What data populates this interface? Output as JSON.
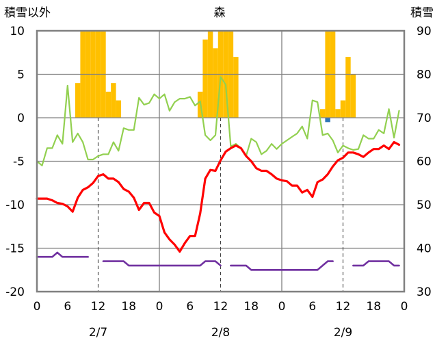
{
  "chart_data": {
    "type": "combo",
    "title": "森",
    "left_axis_title": "積雪以外",
    "right_axis_title": "積雪",
    "left_axis": {
      "min": -20,
      "max": 10,
      "ticks": [
        10,
        5,
        0,
        -5,
        -10,
        -15,
        -20
      ]
    },
    "right_axis": {
      "min": 30,
      "max": 90,
      "ticks": [
        90,
        80,
        70,
        60,
        50,
        40,
        30
      ]
    },
    "x_hour_ticks": [
      "0",
      "6",
      "12",
      "18",
      "0",
      "6",
      "12",
      "18",
      "0",
      "6",
      "12",
      "18",
      "0"
    ],
    "date_labels": [
      {
        "text": "2/7",
        "hour": 12
      },
      {
        "text": "2/8",
        "hour": 36
      },
      {
        "text": "2/9",
        "hour": 60
      }
    ],
    "colors": {
      "frame": "#808080",
      "precip_bar": "#FFC000",
      "temperature": "#FF0000",
      "humidity": "#92D050",
      "snow_depth": "#7030A0",
      "small_bar": "#2E75B6"
    },
    "series": [
      {
        "name": "precipitation",
        "type": "bar",
        "axis": "left",
        "color": "#FFC000",
        "x": [
          8,
          9,
          10,
          11,
          12,
          13,
          14,
          15,
          16,
          32,
          33,
          34,
          35,
          36,
          37,
          38,
          39,
          56,
          57,
          58,
          59,
          60,
          61,
          62,
          63
        ],
        "values": [
          4,
          10,
          10,
          10,
          10,
          10,
          3,
          4,
          2,
          3,
          9,
          10,
          8,
          10,
          10,
          10,
          7,
          1,
          10,
          10,
          1,
          2,
          7,
          5,
          0
        ]
      },
      {
        "name": "small_precip",
        "type": "bar",
        "axis": "left",
        "color": "#2E75B6",
        "x": [
          57
        ],
        "values": [
          -0.5
        ]
      },
      {
        "name": "humidity_line",
        "type": "line",
        "axis": "left",
        "color": "#92D050",
        "x": [
          0,
          1,
          2,
          3,
          4,
          5,
          6,
          7,
          8,
          9,
          10,
          11,
          12,
          13,
          14,
          15,
          16,
          17,
          18,
          19,
          20,
          21,
          22,
          23,
          24,
          25,
          26,
          27,
          28,
          29,
          30,
          31,
          32,
          33,
          34,
          35,
          36,
          37,
          38,
          39,
          40,
          41,
          42,
          43,
          44,
          45,
          46,
          47,
          48,
          49,
          50,
          51,
          52,
          53,
          54,
          55,
          56,
          57,
          58,
          59,
          60,
          61,
          62,
          63,
          64,
          65,
          66,
          67,
          68,
          69,
          70,
          71
        ],
        "values": [
          -5,
          -5.5,
          -3.5,
          -3.5,
          -2,
          -3,
          3.7,
          -2.8,
          -1.8,
          -2.8,
          -4.8,
          -4.8,
          -4.4,
          -4.2,
          -4.2,
          -2.8,
          -3.8,
          -1.2,
          -1.4,
          -1.4,
          2.3,
          1.5,
          1.7,
          2.7,
          2.2,
          2.7,
          0.8,
          1.8,
          2.2,
          2.2,
          2.4,
          1.4,
          1.9,
          -2,
          -2.6,
          -2,
          4.7,
          3.8,
          -3.3,
          -3,
          -3.5,
          -4.4,
          -2.4,
          -2.8,
          -4.2,
          -3.8,
          -3,
          -3.6,
          -3,
          -2.6,
          -2.2,
          -1.8,
          -1,
          -2.4,
          2,
          1.8,
          -2,
          -1.8,
          -2.6,
          -4,
          -3.2,
          -3.5,
          -3.7,
          -3.6,
          -2,
          -2.4,
          -2.4,
          -1.4,
          -1.8,
          1,
          -2.3,
          0.8
        ]
      },
      {
        "name": "temperature_line",
        "type": "line",
        "axis": "left",
        "color": "#FF0000",
        "x": [
          0,
          1,
          2,
          3,
          4,
          5,
          6,
          7,
          8,
          9,
          10,
          11,
          12,
          13,
          14,
          15,
          16,
          17,
          18,
          19,
          20,
          21,
          22,
          23,
          24,
          25,
          26,
          27,
          28,
          29,
          30,
          31,
          32,
          33,
          34,
          35,
          36,
          37,
          38,
          39,
          40,
          41,
          42,
          43,
          44,
          45,
          46,
          47,
          48,
          49,
          50,
          51,
          52,
          53,
          54,
          55,
          56,
          57,
          58,
          59,
          60,
          61,
          62,
          63,
          64,
          65,
          66,
          67,
          68,
          69,
          70,
          71
        ],
        "values": [
          -9.3,
          -9.3,
          -9.3,
          -9.5,
          -9.8,
          -9.9,
          -10.2,
          -10.8,
          -9.2,
          -8.3,
          -8,
          -7.5,
          -6.7,
          -6.5,
          -7,
          -7,
          -7.4,
          -8.2,
          -8.5,
          -9.2,
          -10.6,
          -9.8,
          -9.8,
          -10.9,
          -11.3,
          -13.2,
          -14,
          -14.6,
          -15.4,
          -14.4,
          -13.6,
          -13.6,
          -11,
          -7,
          -6,
          -6.1,
          -4.9,
          -3.9,
          -3.5,
          -3.2,
          -3.5,
          -4.4,
          -5,
          -5.8,
          -6.1,
          -6.1,
          -6.5,
          -7,
          -7.2,
          -7.3,
          -7.8,
          -7.8,
          -8.6,
          -8.3,
          -9.1,
          -7.4,
          -7.1,
          -6.5,
          -5.6,
          -4.9,
          -4.6,
          -4,
          -4,
          -4.2,
          -4.5,
          -4,
          -3.6,
          -3.6,
          -3.2,
          -3.6,
          -2.8,
          -3.1
        ]
      },
      {
        "name": "snow_depth",
        "type": "line",
        "axis": "right",
        "color": "#7030A0",
        "segments": [
          {
            "x": [
              0,
              1,
              2,
              3,
              4,
              5,
              6,
              7,
              8,
              9,
              10
            ],
            "values": [
              38,
              38,
              38,
              38,
              39,
              38,
              38,
              38,
              38,
              38,
              38
            ]
          },
          {
            "x": [
              13,
              14,
              15,
              16,
              17,
              18,
              19,
              20,
              21,
              22,
              23,
              24,
              25,
              26,
              27,
              28,
              29,
              30,
              31,
              32,
              33,
              34,
              35,
              36
            ],
            "values": [
              37,
              37,
              37,
              37,
              37,
              36,
              36,
              36,
              36,
              36,
              36,
              36,
              36,
              36,
              36,
              36,
              36,
              36,
              36,
              36,
              37,
              37,
              37,
              36
            ]
          },
          {
            "x": [
              38,
              39,
              40,
              41,
              42,
              43,
              44,
              45,
              46,
              47,
              48,
              49,
              50,
              51,
              52,
              53,
              54,
              55,
              56,
              57,
              58
            ],
            "values": [
              36,
              36,
              36,
              36,
              35,
              35,
              35,
              35,
              35,
              35,
              35,
              35,
              35,
              35,
              35,
              35,
              35,
              35,
              36,
              37,
              37
            ]
          },
          {
            "x": [
              62,
              63,
              64,
              65,
              66,
              67,
              68,
              69,
              70,
              71
            ],
            "values": [
              36,
              36,
              36,
              37,
              37,
              37,
              37,
              37,
              36,
              36
            ]
          }
        ]
      }
    ]
  }
}
